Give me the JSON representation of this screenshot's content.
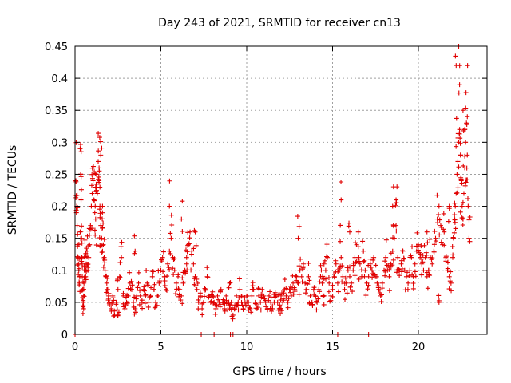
{
  "chart_data": {
    "type": "scatter",
    "title": "Day 243 of 2021, SRMTID for receiver cn13",
    "xlabel": "GPS time / hours",
    "ylabel": "SRMTID / TECUs",
    "xlim": [
      0,
      24
    ],
    "ylim": [
      0,
      0.45
    ],
    "x_ticks": [
      0,
      5,
      10,
      15,
      20
    ],
    "x_tick_labels": [
      "0",
      "5",
      "10",
      "15",
      "20"
    ],
    "y_ticks": [
      0,
      0.05,
      0.1,
      0.15,
      0.2,
      0.25,
      0.3,
      0.35,
      0.4,
      0.45
    ],
    "y_tick_labels": [
      "0",
      "0.05",
      "0.1",
      "0.15",
      "0.2",
      "0.25",
      "0.3",
      "0.35",
      "0.4",
      "0.45"
    ],
    "grid": true,
    "series": [
      {
        "name": "SRMTID",
        "color": "#e00000",
        "marker": "plus",
        "x": [
          0.05,
          0.1,
          0.12,
          0.15,
          0.18,
          0.2,
          0.22,
          0.25,
          0.28,
          0.3,
          0.33,
          0.35,
          0.38,
          0.4,
          0.42,
          0.45,
          0.48,
          0.5,
          0.52,
          0.55,
          0.58,
          0.6,
          0.62,
          0.65,
          0.7,
          0.75,
          0.8,
          0.85,
          0.9,
          0.95,
          1.0,
          1.05,
          1.1,
          1.15,
          1.2,
          1.25,
          1.3,
          1.35,
          1.4,
          1.45,
          1.5,
          1.55,
          1.6,
          1.65,
          1.7,
          1.75,
          1.8,
          1.85,
          1.9,
          1.95,
          2.0,
          2.1,
          2.2,
          2.3,
          2.4,
          2.5,
          2.6,
          2.7,
          2.8,
          2.9,
          3.0,
          3.1,
          3.2,
          3.3,
          3.4,
          3.5,
          3.6,
          3.7,
          3.8,
          3.9,
          4.0,
          4.1,
          4.2,
          4.3,
          4.4,
          4.5,
          4.6,
          4.7,
          4.8,
          4.9,
          5.0,
          5.1,
          5.2,
          5.3,
          5.4,
          5.5,
          5.6,
          5.7,
          5.8,
          5.9,
          6.0,
          6.1,
          6.2,
          6.3,
          6.4,
          6.5,
          6.6,
          6.7,
          6.8,
          6.9,
          7.0,
          7.1,
          7.2,
          7.3,
          7.4,
          7.5,
          7.6,
          7.7,
          7.8,
          7.9,
          8.0,
          8.1,
          8.2,
          8.3,
          8.4,
          8.5,
          8.6,
          8.7,
          8.8,
          8.9,
          9.0,
          9.1,
          9.2,
          9.3,
          9.4,
          9.5,
          9.6,
          9.7,
          9.8,
          9.9,
          10.0,
          10.1,
          10.2,
          10.3,
          10.4,
          10.5,
          10.6,
          10.7,
          10.8,
          10.9,
          11.0,
          11.1,
          11.2,
          11.3,
          11.4,
          11.5,
          11.6,
          11.7,
          11.8,
          11.9,
          12.0,
          12.1,
          12.2,
          12.3,
          12.4,
          12.5,
          12.6,
          12.7,
          12.8,
          12.9,
          13.0,
          13.1,
          13.2,
          13.3,
          13.4,
          13.5,
          13.6,
          13.7,
          13.8,
          13.9,
          14.0,
          14.1,
          14.2,
          14.3,
          14.4,
          14.5,
          14.6,
          14.7,
          14.8,
          14.9,
          15.0,
          15.1,
          15.2,
          15.3,
          15.4,
          15.5,
          15.6,
          15.7,
          15.8,
          15.9,
          16.0,
          16.1,
          16.2,
          16.3,
          16.4,
          16.5,
          16.6,
          16.7,
          16.8,
          16.9,
          17.0,
          17.1,
          17.2,
          17.3,
          17.4,
          17.5,
          17.6,
          17.7,
          17.8,
          17.9,
          18.0,
          18.1,
          18.2,
          18.3,
          18.4,
          18.5,
          18.6,
          18.7,
          18.8,
          18.9,
          19.0,
          19.1,
          19.2,
          19.3,
          19.4,
          19.5,
          19.6,
          19.7,
          19.8,
          19.9,
          20.0,
          20.1,
          20.2,
          20.3,
          20.4,
          20.5,
          20.6,
          20.7,
          20.8,
          20.9,
          21.0,
          21.1,
          21.2,
          21.3,
          21.4,
          21.5,
          21.6,
          21.7,
          21.8,
          21.9,
          22.0,
          22.05,
          22.1,
          22.15,
          22.2,
          22.25,
          22.3,
          22.35,
          22.4,
          22.45,
          22.5,
          22.55,
          22.6,
          22.65,
          22.7,
          22.75,
          22.8,
          22.85,
          22.9,
          22.95,
          0.08,
          0.3,
          0.5,
          1.2,
          1.4,
          1.45,
          1.5,
          1.6,
          2.5,
          3.5,
          5.5,
          6.2,
          6.5,
          7.0,
          9.0,
          12.0,
          13.0,
          14.5,
          15.5,
          16.0,
          18.5,
          18.7,
          20.5,
          21.2,
          21.8,
          22.2,
          22.4,
          22.6,
          22.7,
          22.85,
          0.0,
          7.35,
          8.1,
          9.05,
          9.2,
          15.3,
          17.1
        ],
        "y": [
          0.24,
          0.2,
          0.17,
          0.14,
          0.12,
          0.11,
          0.1,
          0.08,
          0.09,
          0.29,
          0.25,
          0.21,
          0.15,
          0.12,
          0.09,
          0.07,
          0.05,
          0.06,
          0.08,
          0.1,
          0.12,
          0.1,
          0.09,
          0.11,
          0.13,
          0.1,
          0.12,
          0.14,
          0.17,
          0.2,
          0.22,
          0.24,
          0.21,
          0.19,
          0.23,
          0.25,
          0.22,
          0.27,
          0.24,
          0.2,
          0.17,
          0.15,
          0.13,
          0.14,
          0.12,
          0.1,
          0.09,
          0.08,
          0.07,
          0.06,
          0.05,
          0.04,
          0.06,
          0.03,
          0.05,
          0.07,
          0.09,
          0.12,
          0.06,
          0.04,
          0.05,
          0.06,
          0.08,
          0.07,
          0.05,
          0.04,
          0.06,
          0.08,
          0.06,
          0.05,
          0.07,
          0.06,
          0.08,
          0.05,
          0.06,
          0.09,
          0.07,
          0.05,
          0.06,
          0.08,
          0.1,
          0.12,
          0.09,
          0.07,
          0.11,
          0.13,
          0.15,
          0.12,
          0.1,
          0.08,
          0.09,
          0.07,
          0.06,
          0.08,
          0.1,
          0.12,
          0.14,
          0.16,
          0.13,
          0.11,
          0.09,
          0.07,
          0.05,
          0.06,
          0.04,
          0.05,
          0.07,
          0.09,
          0.06,
          0.05,
          0.06,
          0.05,
          0.04,
          0.06,
          0.05,
          0.07,
          0.05,
          0.04,
          0.06,
          0.05,
          0.04,
          0.05,
          0.03,
          0.04,
          0.06,
          0.05,
          0.07,
          0.05,
          0.04,
          0.05,
          0.06,
          0.05,
          0.04,
          0.06,
          0.07,
          0.05,
          0.04,
          0.06,
          0.05,
          0.07,
          0.06,
          0.05,
          0.04,
          0.06,
          0.05,
          0.04,
          0.05,
          0.06,
          0.05,
          0.04,
          0.06,
          0.05,
          0.07,
          0.06,
          0.05,
          0.07,
          0.06,
          0.08,
          0.07,
          0.09,
          0.08,
          0.1,
          0.09,
          0.11,
          0.08,
          0.07,
          0.09,
          0.06,
          0.05,
          0.07,
          0.06,
          0.05,
          0.07,
          0.09,
          0.08,
          0.06,
          0.1,
          0.12,
          0.08,
          0.06,
          0.07,
          0.09,
          0.11,
          0.08,
          0.1,
          0.12,
          0.09,
          0.07,
          0.08,
          0.1,
          0.09,
          0.08,
          0.1,
          0.12,
          0.14,
          0.16,
          0.11,
          0.09,
          0.13,
          0.1,
          0.08,
          0.09,
          0.11,
          0.1,
          0.12,
          0.09,
          0.08,
          0.07,
          0.06,
          0.08,
          0.1,
          0.12,
          0.1,
          0.09,
          0.11,
          0.13,
          0.15,
          0.17,
          0.12,
          0.1,
          0.11,
          0.13,
          0.1,
          0.09,
          0.08,
          0.1,
          0.12,
          0.09,
          0.11,
          0.13,
          0.14,
          0.12,
          0.11,
          0.1,
          0.12,
          0.09,
          0.1,
          0.12,
          0.11,
          0.13,
          0.15,
          0.18,
          0.2,
          0.17,
          0.14,
          0.16,
          0.12,
          0.1,
          0.09,
          0.08,
          0.12,
          0.15,
          0.18,
          0.2,
          0.22,
          0.25,
          0.27,
          0.3,
          0.32,
          0.28,
          0.24,
          0.2,
          0.18,
          0.22,
          0.26,
          0.3,
          0.33,
          0.28,
          0.2,
          0.15,
          0.19,
          0.16,
          0.04,
          0.18,
          0.26,
          0.23,
          0.28,
          0.2,
          0.03,
          0.13,
          0.2,
          0.18,
          0.11,
          0.16,
          0.08,
          0.04,
          0.15,
          0.11,
          0.21,
          0.16,
          0.2,
          0.21,
          0.16,
          0.05,
          0.2,
          0.42,
          0.39,
          0.35,
          0.32,
          0.34,
          0.0,
          0.0,
          0.0,
          0.0,
          0.0,
          0.0,
          0.0
        ]
      }
    ]
  }
}
